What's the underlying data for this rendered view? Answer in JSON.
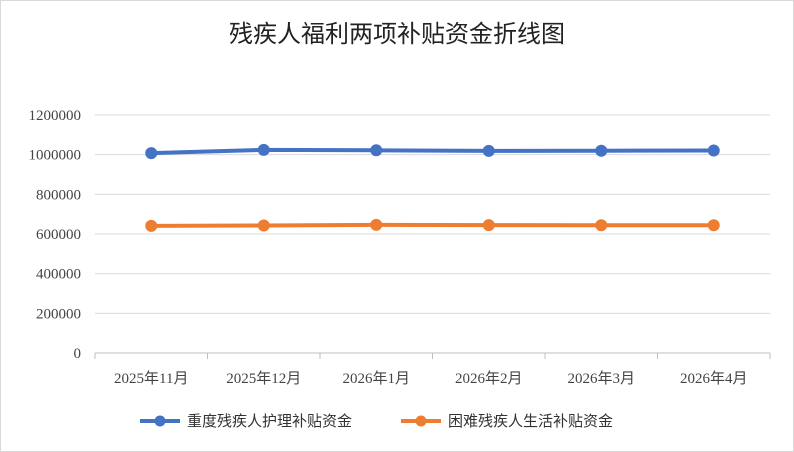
{
  "chart_data": {
    "type": "line",
    "title": "残疾人福利两项补贴资金折线图",
    "categories": [
      "2025年11月",
      "2025年12月",
      "2026年1月",
      "2026年2月",
      "2026年3月",
      "2026年4月"
    ],
    "series": [
      {
        "name": "重度残疾人护理补贴资金",
        "color": "#4472C4",
        "values": [
          1008000,
          1024000,
          1022000,
          1019000,
          1020000,
          1021000
        ]
      },
      {
        "name": "困难残疾人生活补贴资金",
        "color": "#ED7D31",
        "values": [
          641000,
          643000,
          646000,
          645000,
          644000,
          644000
        ]
      }
    ],
    "ylim": [
      0,
      1200000
    ],
    "yticks": [
      "0",
      "200000",
      "400000",
      "600000",
      "800000",
      "1000000",
      "1200000"
    ],
    "grid": true,
    "legend": "bottom"
  }
}
